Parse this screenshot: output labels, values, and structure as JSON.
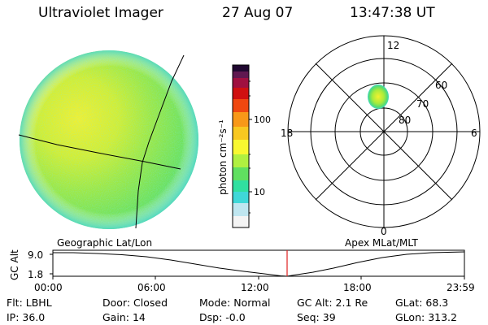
{
  "header": {
    "instrument": "Ultraviolet Imager",
    "date": "27 Aug 07",
    "time": "13:47:38 UT"
  },
  "colorbar": {
    "unit_label": "photon cm⁻²s⁻¹",
    "ticks": [
      {
        "value": 100,
        "label": "100"
      },
      {
        "value": 10,
        "label": "10"
      }
    ],
    "scale": "log",
    "range": [
      2.5,
      600
    ],
    "colors": [
      "#f4f4f4",
      "#bfe6f0",
      "#3fd8d8",
      "#30e0a0",
      "#60e060",
      "#b0f040",
      "#f8f830",
      "#f8c820",
      "#f89818",
      "#f04810",
      "#d01010",
      "#a01040",
      "#601850",
      "#200830"
    ]
  },
  "polar_plot": {
    "labels": {
      "top": "12",
      "bottom": "0",
      "left": "18",
      "right": "6"
    },
    "rings": [
      {
        "lat": 80,
        "label": "80"
      },
      {
        "lat": 70,
        "label": "70"
      },
      {
        "lat": 60,
        "label": "60"
      }
    ]
  },
  "captions": {
    "left": "Geographic Lat/Lon",
    "right": "Apex MLat/MLT"
  },
  "altitude_plot": {
    "y_axis_label": "GC Alt",
    "y_ticks": [
      "9.0",
      "1.8"
    ],
    "x_ticks": [
      "00:00",
      "06:00",
      "12:00",
      "18:00",
      "23:59"
    ],
    "current_time_marker": "13:47:38"
  },
  "info": {
    "flt_label": "Flt:",
    "flt_value": "LBHL",
    "ip_label": "IP:",
    "ip_value": "36.0",
    "door_label": "Door:",
    "door_value": "Closed",
    "gain_label": "Gain:",
    "gain_value": "14",
    "mode_label": "Mode:",
    "mode_value": "Normal",
    "dsp_label": "Dsp:",
    "dsp_value": "-0.0",
    "gcalt_label": "GC Alt:",
    "gcalt_value": "2.1 Re",
    "seq_label": "Seq:",
    "seq_value": "39",
    "glat_label": "GLat:",
    "glat_value": "68.3",
    "glon_label": "GLon:",
    "glon_value": "313.2"
  }
}
